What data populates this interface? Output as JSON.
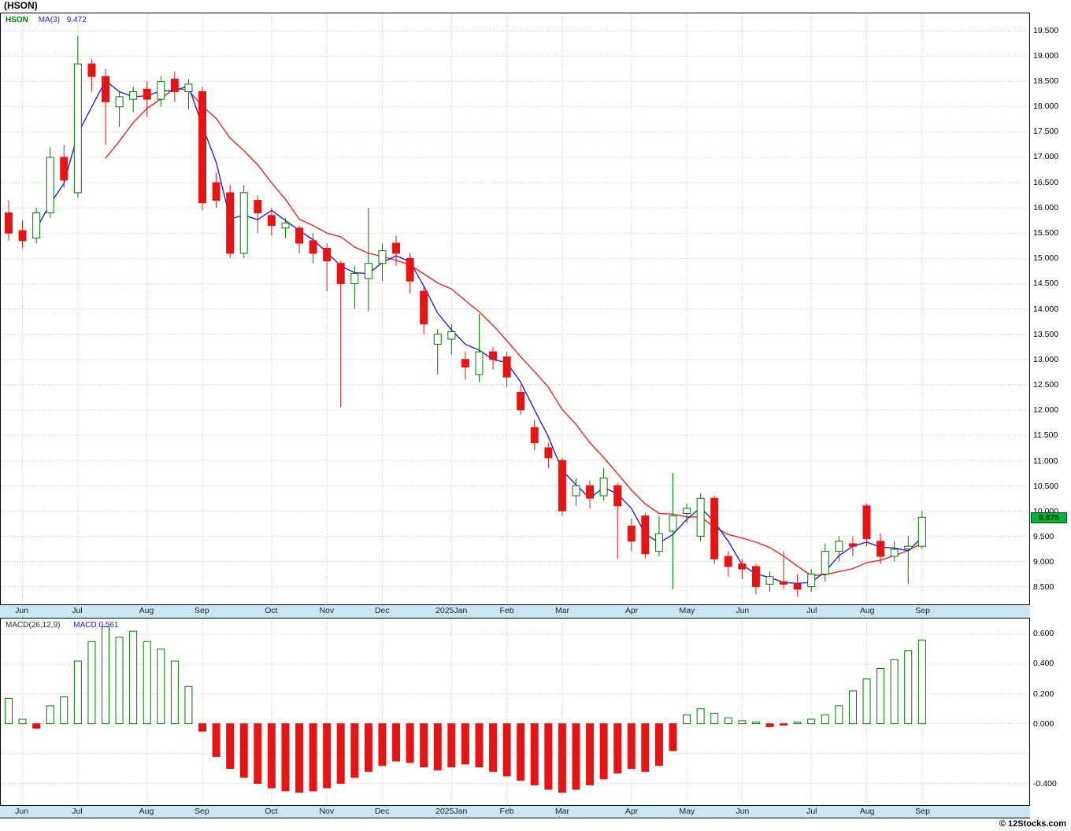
{
  "window": {
    "title": "(HSON)"
  },
  "legend": {
    "symbol": "HSON",
    "ma_label": "MA(3)",
    "ma_value": "9.472"
  },
  "footer": {
    "credit": "© 12Stocks.com"
  },
  "chart_data": {
    "type": "candlestick",
    "symbol": "HSON",
    "interval": "weekly",
    "title": "(HSON)",
    "grid": true,
    "months": [
      "Jun",
      "Jul",
      "Aug",
      "Sep",
      "Oct",
      "Nov",
      "Dec",
      "2025Jan",
      "Feb",
      "Mar",
      "Apr",
      "May",
      "Jun",
      "Jul",
      "Aug",
      "Sep"
    ],
    "month_start_index": [
      0,
      4,
      9,
      13,
      18,
      22,
      26,
      31,
      35,
      39,
      44,
      48,
      52,
      57,
      61,
      65
    ],
    "colors": {
      "up": "#007a00",
      "down": "#e81414",
      "ma_fast": "#2020dd",
      "ma_slow": "#ee2222",
      "grid": "#c4c4c4",
      "axis_strip": "#c9e6f4",
      "badge_bg": "#00b140"
    },
    "price_panel": {
      "ylim": [
        8.15,
        19.85
      ],
      "yticks": [
        "19.500",
        "19.000",
        "18.500",
        "18.000",
        "17.500",
        "17.000",
        "16.500",
        "16.000",
        "15.500",
        "15.000",
        "14.500",
        "14.000",
        "13.500",
        "13.000",
        "12.500",
        "12.000",
        "11.500",
        "11.000",
        "10.500",
        "10.000",
        "9.500",
        "9.000",
        "8.500"
      ],
      "last_price_label": "9.875",
      "ma_fast_period": 3,
      "ma_slow_period": 8,
      "ohlc_format": [
        "open",
        "high",
        "low",
        "close"
      ],
      "candles": [
        [
          15.9,
          16.15,
          15.35,
          15.5
        ],
        [
          15.55,
          15.75,
          15.2,
          15.35
        ],
        [
          15.4,
          16.0,
          15.3,
          15.9
        ],
        [
          15.9,
          17.2,
          15.8,
          17.0
        ],
        [
          17.0,
          17.25,
          16.4,
          16.55
        ],
        [
          16.3,
          19.4,
          16.2,
          18.85
        ],
        [
          18.85,
          18.95,
          18.3,
          18.6
        ],
        [
          18.6,
          18.75,
          17.25,
          18.1
        ],
        [
          18.0,
          18.3,
          17.6,
          18.2
        ],
        [
          18.15,
          18.4,
          17.9,
          18.3
        ],
        [
          18.35,
          18.5,
          17.8,
          18.15
        ],
        [
          18.15,
          18.6,
          18.0,
          18.5
        ],
        [
          18.55,
          18.7,
          18.1,
          18.3
        ],
        [
          18.3,
          18.55,
          17.95,
          18.45
        ],
        [
          18.3,
          18.4,
          15.95,
          16.1
        ],
        [
          16.5,
          16.7,
          16.0,
          16.15
        ],
        [
          16.3,
          16.45,
          15.0,
          15.1
        ],
        [
          15.1,
          16.45,
          15.0,
          16.3
        ],
        [
          16.15,
          16.25,
          15.5,
          15.9
        ],
        [
          15.85,
          16.0,
          15.45,
          15.65
        ],
        [
          15.6,
          15.8,
          15.4,
          15.7
        ],
        [
          15.6,
          15.65,
          15.1,
          15.3
        ],
        [
          15.35,
          15.5,
          14.9,
          15.1
        ],
        [
          15.2,
          15.3,
          14.35,
          14.95
        ],
        [
          14.9,
          14.95,
          12.05,
          14.5
        ],
        [
          14.5,
          14.85,
          14.0,
          14.7
        ],
        [
          14.6,
          16.0,
          13.95,
          14.9
        ],
        [
          14.9,
          15.3,
          14.55,
          15.15
        ],
        [
          15.3,
          15.45,
          14.85,
          15.1
        ],
        [
          15.0,
          15.1,
          14.3,
          14.55
        ],
        [
          14.35,
          14.45,
          13.5,
          13.7
        ],
        [
          13.3,
          13.6,
          12.7,
          13.5
        ],
        [
          13.4,
          13.7,
          13.1,
          13.55
        ],
        [
          13.0,
          13.15,
          12.6,
          12.85
        ],
        [
          12.7,
          13.9,
          12.55,
          13.15
        ],
        [
          13.15,
          13.25,
          12.8,
          13.0
        ],
        [
          13.05,
          13.15,
          12.45,
          12.65
        ],
        [
          12.35,
          12.5,
          11.9,
          12.0
        ],
        [
          11.65,
          11.8,
          11.2,
          11.35
        ],
        [
          11.25,
          11.35,
          10.85,
          11.05
        ],
        [
          11.0,
          11.05,
          9.9,
          10.0
        ],
        [
          10.3,
          10.65,
          10.1,
          10.5
        ],
        [
          10.5,
          10.6,
          10.05,
          10.25
        ],
        [
          10.3,
          10.85,
          10.2,
          10.65
        ],
        [
          10.5,
          10.55,
          9.05,
          10.1
        ],
        [
          9.7,
          9.85,
          9.2,
          9.4
        ],
        [
          9.9,
          9.95,
          9.05,
          9.15
        ],
        [
          9.2,
          9.9,
          9.1,
          9.55
        ],
        [
          9.6,
          10.75,
          8.45,
          9.9
        ],
        [
          9.95,
          10.15,
          9.75,
          10.05
        ],
        [
          9.5,
          10.35,
          9.4,
          10.25
        ],
        [
          10.25,
          10.3,
          8.95,
          9.05
        ],
        [
          9.1,
          9.2,
          8.7,
          8.9
        ],
        [
          8.95,
          9.05,
          8.65,
          8.85
        ],
        [
          8.9,
          8.95,
          8.35,
          8.5
        ],
        [
          8.55,
          8.8,
          8.4,
          8.7
        ],
        [
          8.6,
          9.2,
          8.45,
          8.55
        ],
        [
          8.55,
          8.75,
          8.3,
          8.45
        ],
        [
          8.5,
          8.85,
          8.4,
          8.75
        ],
        [
          8.75,
          9.35,
          8.6,
          9.2
        ],
        [
          9.2,
          9.5,
          9.0,
          9.4
        ],
        [
          9.35,
          9.5,
          9.1,
          9.3
        ],
        [
          10.1,
          10.15,
          9.3,
          9.45
        ],
        [
          9.4,
          9.55,
          8.95,
          9.1
        ],
        [
          9.1,
          9.4,
          9.0,
          9.24
        ],
        [
          9.25,
          9.5,
          8.55,
          9.3
        ],
        [
          9.3,
          10.0,
          9.25,
          9.875
        ]
      ]
    },
    "macd_panel": {
      "indicator_label": "MACD(26,12,9)",
      "value_label": "MACD:0.561",
      "ylim": [
        -0.545,
        0.705
      ],
      "yticks": [
        "0.600",
        "0.400",
        "0.200",
        "0.000",
        "-0.400"
      ],
      "gridlines": [
        0.6,
        0.4,
        0.2,
        0.0,
        -0.2,
        -0.4
      ],
      "values": [
        0.17,
        0.03,
        -0.03,
        0.12,
        0.18,
        0.42,
        0.55,
        0.65,
        0.58,
        0.62,
        0.55,
        0.5,
        0.42,
        0.25,
        -0.05,
        -0.22,
        -0.3,
        -0.36,
        -0.4,
        -0.43,
        -0.45,
        -0.46,
        -0.45,
        -0.43,
        -0.4,
        -0.36,
        -0.32,
        -0.28,
        -0.25,
        -0.26,
        -0.29,
        -0.31,
        -0.29,
        -0.27,
        -0.29,
        -0.32,
        -0.35,
        -0.38,
        -0.41,
        -0.44,
        -0.46,
        -0.44,
        -0.41,
        -0.37,
        -0.33,
        -0.3,
        -0.32,
        -0.28,
        -0.18,
        0.06,
        0.1,
        0.07,
        0.04,
        0.02,
        0.01,
        -0.02,
        -0.01,
        0.01,
        0.03,
        0.06,
        0.12,
        0.22,
        0.3,
        0.37,
        0.43,
        0.49,
        0.561
      ]
    }
  }
}
